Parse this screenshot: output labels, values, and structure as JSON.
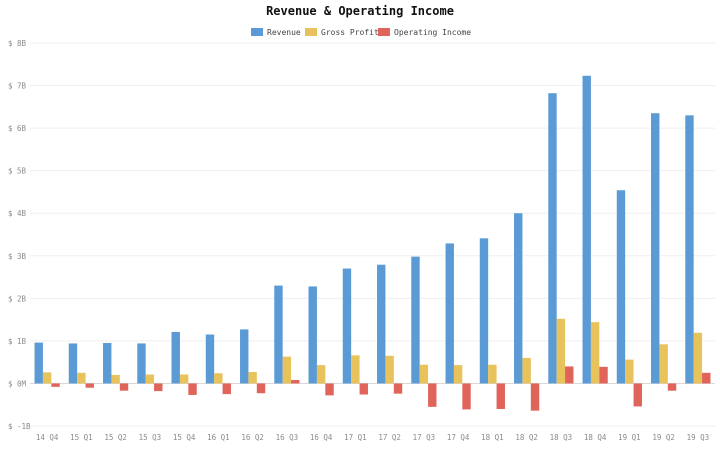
{
  "chart_data": {
    "type": "bar",
    "title": "Revenue & Operating Income",
    "xlabel": "",
    "ylabel": "",
    "ylim": [
      -1,
      8
    ],
    "yticks": [
      {
        "value": 8,
        "label": "$ 8B"
      },
      {
        "value": 7,
        "label": "$ 7B"
      },
      {
        "value": 6,
        "label": "$ 6B"
      },
      {
        "value": 5,
        "label": "$ 5B"
      },
      {
        "value": 4,
        "label": "$ 4B"
      },
      {
        "value": 3,
        "label": "$ 3B"
      },
      {
        "value": 2,
        "label": "$ 2B"
      },
      {
        "value": 1,
        "label": "$ 1B"
      },
      {
        "value": 0,
        "label": "$ 0M"
      },
      {
        "value": -1,
        "label": "$ -1B"
      }
    ],
    "grid": true,
    "legend_position": "top-center",
    "categories": [
      "14 Q4",
      "15 Q1",
      "15 Q2",
      "15 Q3",
      "15 Q4",
      "16 Q1",
      "16 Q2",
      "16 Q3",
      "16 Q4",
      "17 Q1",
      "17 Q2",
      "17 Q3",
      "17 Q4",
      "18 Q1",
      "18 Q2",
      "18 Q3",
      "18 Q4",
      "19 Q1",
      "19 Q2",
      "19 Q3"
    ],
    "series": [
      {
        "name": "Revenue",
        "color": "#5b9bd5",
        "values": [
          0.96,
          0.94,
          0.95,
          0.94,
          1.21,
          1.15,
          1.27,
          2.3,
          2.28,
          2.7,
          2.79,
          2.98,
          3.29,
          3.41,
          4.0,
          6.82,
          7.23,
          4.54,
          6.35,
          6.3
        ]
      },
      {
        "name": "Gross Profit",
        "color": "#e8c25a",
        "values": [
          0.26,
          0.25,
          0.2,
          0.21,
          0.21,
          0.24,
          0.27,
          0.63,
          0.43,
          0.66,
          0.65,
          0.44,
          0.43,
          0.44,
          0.6,
          1.52,
          1.44,
          0.56,
          0.92,
          1.19
        ]
      },
      {
        "name": "Operating Income",
        "color": "#e0645a",
        "values": [
          -0.08,
          -0.1,
          -0.17,
          -0.18,
          -0.27,
          -0.25,
          -0.23,
          0.08,
          -0.28,
          -0.26,
          -0.24,
          -0.55,
          -0.61,
          -0.6,
          -0.64,
          0.4,
          0.39,
          -0.54,
          -0.17,
          0.25
        ]
      }
    ]
  }
}
